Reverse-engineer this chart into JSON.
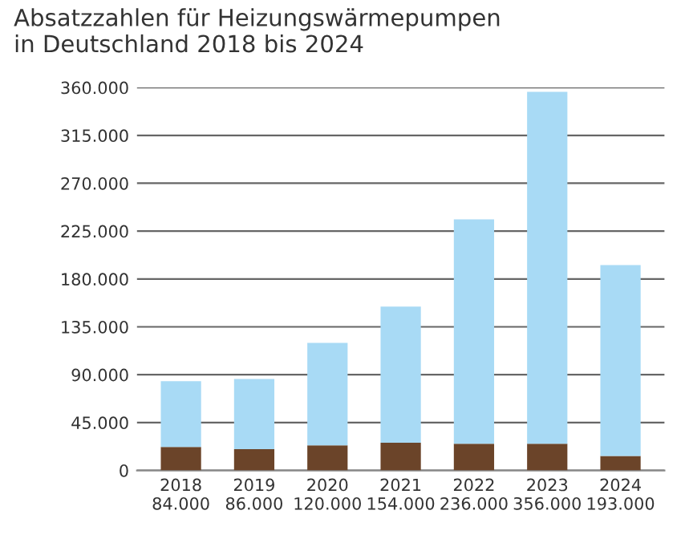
{
  "chart_data": {
    "type": "bar",
    "title": "Absatzzahlen für Heizungswärmepumpen\nin Deutschland 2018 bis 2024",
    "categories": [
      "2018",
      "2019",
      "2020",
      "2021",
      "2022",
      "2023",
      "2024"
    ],
    "stacked": true,
    "series": [
      {
        "color": "#6b4429",
        "values": [
          22000,
          20000,
          23500,
          26000,
          25000,
          25000,
          13500
        ]
      },
      {
        "color": "#a8daf5",
        "values": [
          62000,
          66000,
          96500,
          128000,
          211000,
          331000,
          179500
        ]
      }
    ],
    "totals": [
      "84.000",
      "86.000",
      "120.000",
      "154.000",
      "236.000",
      "356.000",
      "193.000"
    ],
    "ylim": [
      0,
      360000
    ],
    "yticks": [
      {
        "value": 0,
        "label": "0"
      },
      {
        "value": 45000,
        "label": "45.000"
      },
      {
        "value": 90000,
        "label": "90.000"
      },
      {
        "value": 135000,
        "label": "135.000"
      },
      {
        "value": 180000,
        "label": "180.000"
      },
      {
        "value": 225000,
        "label": "225.000"
      },
      {
        "value": 270000,
        "label": "270.000"
      },
      {
        "value": 315000,
        "label": "315.000"
      },
      {
        "value": 360000,
        "label": "360.000"
      }
    ],
    "grid": "y"
  }
}
